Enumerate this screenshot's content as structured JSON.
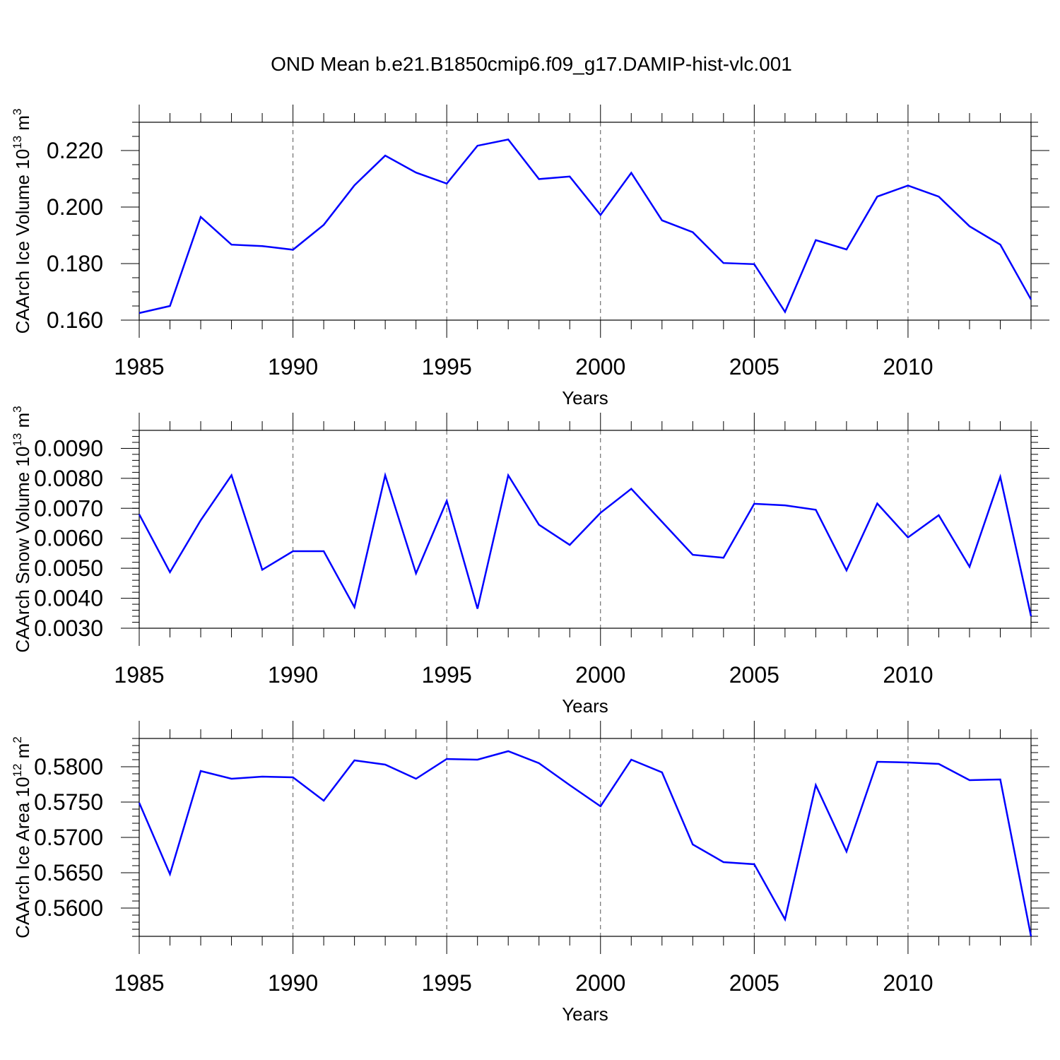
{
  "figure_title": "OND Mean b.e21.B1850cmip6.f09_g17.DAMIP-hist-vlc.001",
  "line_color": "#0000ff",
  "chart_data": [
    {
      "type": "line",
      "title": "OND Mean b.e21.B1850cmip6.f09_g17.DAMIP-hist-vlc.001",
      "xlabel": "Years",
      "ylabel_base": "CAArch Ice Volume 10",
      "ylabel_exp": "13",
      "ylabel_unit": " m",
      "ylabel_unit_exp": "3",
      "xlim": [
        1985,
        2014
      ],
      "ylim": [
        0.16,
        0.23
      ],
      "xticks": [
        "1985",
        "1990",
        "1995",
        "2000",
        "2005",
        "2010"
      ],
      "yticks": [
        "0.160",
        "0.180",
        "0.200",
        "0.220"
      ],
      "ytick_values": [
        0.16,
        0.18,
        0.2,
        0.22
      ],
      "y_minor_step": 0.005,
      "x": [
        1985,
        1986,
        1987,
        1988,
        1989,
        1990,
        1991,
        1992,
        1993,
        1994,
        1995,
        1996,
        1997,
        1998,
        1999,
        2000,
        2001,
        2002,
        2003,
        2004,
        2005,
        2006,
        2007,
        2008,
        2009,
        2010,
        2011,
        2012,
        2013,
        2014
      ],
      "values": [
        0.1625,
        0.165,
        0.1965,
        0.1867,
        0.1862,
        0.1849,
        0.1937,
        0.2077,
        0.2182,
        0.2122,
        0.2083,
        0.2217,
        0.2239,
        0.2099,
        0.2108,
        0.1972,
        0.2121,
        0.1953,
        0.1911,
        0.1802,
        0.1798,
        0.1629,
        0.1883,
        0.185,
        0.2037,
        0.2076,
        0.2037,
        0.1932,
        0.1867,
        0.1673
      ]
    },
    {
      "type": "line",
      "xlabel": "Years",
      "ylabel_base": "CAArch Snow Volume 10",
      "ylabel_exp": "13",
      "ylabel_unit": " m",
      "ylabel_unit_exp": "3",
      "xlim": [
        1985,
        2014
      ],
      "ylim": [
        0.003,
        0.0096
      ],
      "xticks": [
        "1985",
        "1990",
        "1995",
        "2000",
        "2005",
        "2010"
      ],
      "yticks": [
        "0.0030",
        "0.0040",
        "0.0050",
        "0.0060",
        "0.0070",
        "0.0080",
        "0.0090"
      ],
      "ytick_values": [
        0.003,
        0.004,
        0.005,
        0.006,
        0.007,
        0.008,
        0.009
      ],
      "y_minor_step": 0.0002,
      "x": [
        1985,
        1986,
        1987,
        1988,
        1989,
        1990,
        1991,
        1992,
        1993,
        1994,
        1995,
        1996,
        1997,
        1998,
        1999,
        2000,
        2001,
        2002,
        2003,
        2004,
        2005,
        2006,
        2007,
        2008,
        2009,
        2010,
        2011,
        2012,
        2013,
        2014
      ],
      "values": [
        0.0068,
        0.00487,
        0.0066,
        0.0081,
        0.00495,
        0.00557,
        0.00557,
        0.0037,
        0.0081,
        0.00483,
        0.00725,
        0.00365,
        0.0081,
        0.00645,
        0.00578,
        0.00685,
        0.00765,
        0.00655,
        0.00545,
        0.00535,
        0.00715,
        0.0071,
        0.00695,
        0.00493,
        0.00716,
        0.00603,
        0.00677,
        0.00505,
        0.00805,
        0.0034
      ]
    },
    {
      "type": "line",
      "xlabel": "Years",
      "ylabel_base": "CAArch Ice Area 10",
      "ylabel_exp": "12",
      "ylabel_unit": " m",
      "ylabel_unit_exp": "2",
      "xlim": [
        1985,
        2014
      ],
      "ylim": [
        0.556,
        0.584
      ],
      "xticks": [
        "1985",
        "1990",
        "1995",
        "2000",
        "2005",
        "2010"
      ],
      "yticks": [
        "0.5600",
        "0.5650",
        "0.5700",
        "0.5750",
        "0.5800"
      ],
      "ytick_values": [
        0.56,
        0.565,
        0.57,
        0.575,
        0.58
      ],
      "y_minor_step": 0.001,
      "x": [
        1985,
        1986,
        1987,
        1988,
        1989,
        1990,
        1991,
        1992,
        1993,
        1994,
        1995,
        1996,
        1997,
        1998,
        1999,
        2000,
        2001,
        2002,
        2003,
        2004,
        2005,
        2006,
        2007,
        2008,
        2009,
        2010,
        2011,
        2012,
        2013,
        2014
      ],
      "values": [
        0.5749,
        0.5648,
        0.5794,
        0.5783,
        0.5786,
        0.5785,
        0.5752,
        0.5809,
        0.5803,
        0.5783,
        0.5811,
        0.581,
        0.5822,
        0.5805,
        0.5774,
        0.5744,
        0.581,
        0.5792,
        0.569,
        0.5665,
        0.5662,
        0.5584,
        0.5774,
        0.568,
        0.5807,
        0.5806,
        0.5804,
        0.5781,
        0.5782,
        0.556
      ]
    }
  ]
}
